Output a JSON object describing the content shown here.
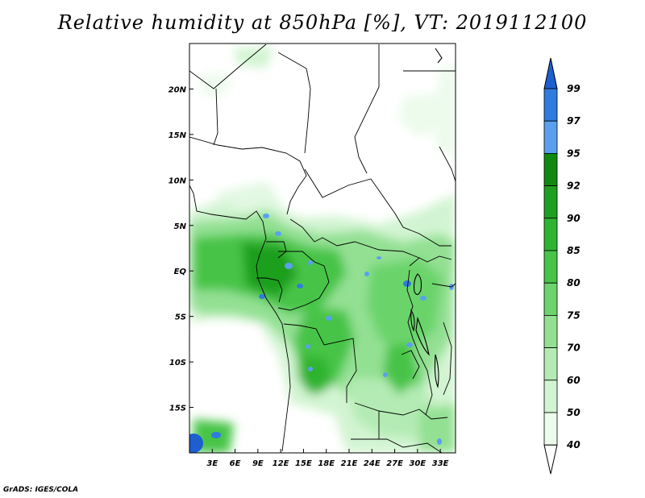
{
  "title": "Relative humidity at 850hPa [%], VT: 2019112100",
  "credit": "GrADS: IGES/COLA",
  "map": {
    "lon_range": [
      0,
      35
    ],
    "lat_range": [
      -20,
      25
    ],
    "lon_ticks": [
      "3E",
      "6E",
      "9E",
      "12E",
      "15E",
      "18E",
      "21E",
      "24E",
      "27E",
      "30E",
      "33E"
    ],
    "lat_ticks": [
      "20N",
      "15N",
      "10N",
      "5N",
      "EQ",
      "5S",
      "10S",
      "15S"
    ]
  },
  "colorbar": {
    "levels": [
      "99",
      "97",
      "95",
      "92",
      "90",
      "85",
      "80",
      "75",
      "70",
      "60",
      "50",
      "40"
    ],
    "colors": [
      "#1e5fd0",
      "#2f7be0",
      "#5aa0ee",
      "#0f8a0f",
      "#1f9f1f",
      "#2fb42f",
      "#46c446",
      "#6bd46b",
      "#93e093",
      "#b4ebb4",
      "#d2f4d2",
      "#ecfbec",
      "#ffffff"
    ]
  }
}
